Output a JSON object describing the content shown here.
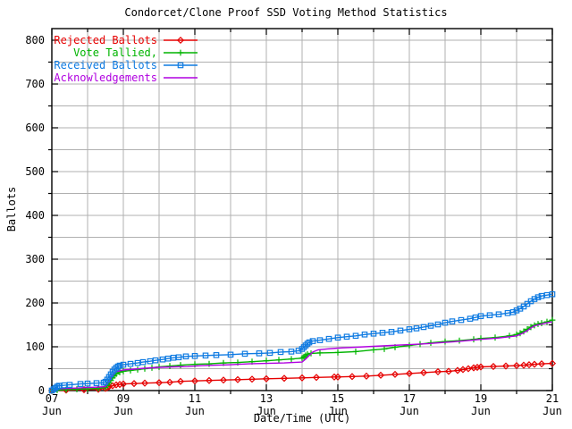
{
  "title": "Condorcet/Clone Proof SSD Voting Method Statistics",
  "chart_data": {
    "type": "line",
    "title": "Condorcet/Clone Proof SSD Voting Method Statistics",
    "xlabel": "Date/Time (UTC)",
    "ylabel": "Ballots",
    "xlim": [
      7,
      21
    ],
    "ylim": [
      0,
      826
    ],
    "grid": true,
    "grid_color": "#b0b0b0",
    "border_color": "#000000",
    "background_color": "#ffffff",
    "legend_position": "top-left",
    "x_tick_days": [
      7,
      9,
      11,
      13,
      15,
      17,
      19,
      21
    ],
    "x_tick_labels": [
      "07",
      "09",
      "11",
      "13",
      "15",
      "17",
      "19",
      "21"
    ],
    "x_tick_sublabel": "Jun",
    "x_minor_step_days": 1,
    "y_tick_step": 100,
    "y_grid_step": 50,
    "y_tick_labels": [
      "0",
      "100",
      "200",
      "300",
      "400",
      "500",
      "600",
      "700",
      "800"
    ],
    "series": [
      {
        "name": "Rejected Ballots",
        "color": "#e60000",
        "marker": "diamond",
        "points": [
          [
            7.0,
            0
          ],
          [
            7.4,
            1
          ],
          [
            7.9,
            2
          ],
          [
            8.3,
            3
          ],
          [
            8.5,
            5
          ],
          [
            8.55,
            7
          ],
          [
            8.6,
            9
          ],
          [
            8.7,
            11
          ],
          [
            8.8,
            13
          ],
          [
            8.9,
            14
          ],
          [
            9.0,
            15
          ],
          [
            9.3,
            16
          ],
          [
            9.6,
            17
          ],
          [
            10.0,
            18
          ],
          [
            10.3,
            19
          ],
          [
            10.6,
            21
          ],
          [
            11.0,
            22
          ],
          [
            11.4,
            23
          ],
          [
            11.8,
            24
          ],
          [
            12.2,
            25
          ],
          [
            12.6,
            26
          ],
          [
            13.0,
            27
          ],
          [
            13.5,
            28
          ],
          [
            14.0,
            29
          ],
          [
            14.4,
            30
          ],
          [
            14.9,
            31
          ],
          [
            15.0,
            31
          ],
          [
            15.4,
            32
          ],
          [
            15.8,
            33
          ],
          [
            16.2,
            35
          ],
          [
            16.6,
            37
          ],
          [
            17.0,
            39
          ],
          [
            17.4,
            41
          ],
          [
            17.8,
            43
          ],
          [
            18.1,
            44
          ],
          [
            18.35,
            46
          ],
          [
            18.5,
            48
          ],
          [
            18.65,
            50
          ],
          [
            18.8,
            52
          ],
          [
            18.9,
            53
          ],
          [
            19.0,
            54
          ],
          [
            19.35,
            55
          ],
          [
            19.7,
            56
          ],
          [
            20.0,
            57
          ],
          [
            20.2,
            58
          ],
          [
            20.35,
            59
          ],
          [
            20.5,
            60
          ],
          [
            20.7,
            61
          ],
          [
            21.0,
            62
          ]
        ]
      },
      {
        "name": "Vote Tallied,",
        "color": "#00b400",
        "marker": "plus",
        "points": [
          [
            7.0,
            0
          ],
          [
            7.15,
            1
          ],
          [
            7.4,
            2
          ],
          [
            7.7,
            3
          ],
          [
            8.0,
            4
          ],
          [
            8.3,
            5
          ],
          [
            8.5,
            7
          ],
          [
            8.55,
            12
          ],
          [
            8.6,
            17
          ],
          [
            8.65,
            23
          ],
          [
            8.7,
            29
          ],
          [
            8.75,
            34
          ],
          [
            8.8,
            38
          ],
          [
            8.9,
            42
          ],
          [
            9.0,
            44
          ],
          [
            9.2,
            46
          ],
          [
            9.4,
            48
          ],
          [
            9.6,
            50
          ],
          [
            9.8,
            52
          ],
          [
            10.0,
            54
          ],
          [
            10.3,
            56
          ],
          [
            10.6,
            58
          ],
          [
            11.0,
            60
          ],
          [
            11.4,
            61
          ],
          [
            11.8,
            63
          ],
          [
            12.2,
            64
          ],
          [
            12.6,
            66
          ],
          [
            13.0,
            68
          ],
          [
            13.35,
            70
          ],
          [
            13.7,
            72
          ],
          [
            14.0,
            74
          ],
          [
            14.05,
            77
          ],
          [
            14.1,
            80
          ],
          [
            14.15,
            83
          ],
          [
            14.25,
            85
          ],
          [
            14.5,
            86
          ],
          [
            15.0,
            87
          ],
          [
            15.5,
            89
          ],
          [
            16.0,
            93
          ],
          [
            16.3,
            95
          ],
          [
            16.6,
            99
          ],
          [
            17.0,
            103
          ],
          [
            17.3,
            106
          ],
          [
            17.6,
            109
          ],
          [
            18.0,
            112
          ],
          [
            18.4,
            114
          ],
          [
            18.8,
            117
          ],
          [
            19.0,
            119
          ],
          [
            19.4,
            121
          ],
          [
            19.8,
            125
          ],
          [
            20.0,
            128
          ],
          [
            20.1,
            131
          ],
          [
            20.2,
            135
          ],
          [
            20.3,
            140
          ],
          [
            20.4,
            145
          ],
          [
            20.5,
            149
          ],
          [
            20.6,
            152
          ],
          [
            20.7,
            154
          ],
          [
            20.85,
            157
          ],
          [
            21.0,
            161
          ]
        ]
      },
      {
        "name": "Received Ballots",
        "color": "#0f7be2",
        "marker": "square",
        "points": [
          [
            7.0,
            0
          ],
          [
            7.05,
            3
          ],
          [
            7.1,
            6
          ],
          [
            7.15,
            9
          ],
          [
            7.2,
            11
          ],
          [
            7.35,
            12
          ],
          [
            7.5,
            13
          ],
          [
            7.8,
            15
          ],
          [
            8.0,
            16
          ],
          [
            8.25,
            17
          ],
          [
            8.45,
            18
          ],
          [
            8.5,
            20
          ],
          [
            8.55,
            25
          ],
          [
            8.6,
            31
          ],
          [
            8.65,
            37
          ],
          [
            8.7,
            43
          ],
          [
            8.75,
            48
          ],
          [
            8.8,
            52
          ],
          [
            8.85,
            55
          ],
          [
            8.9,
            57
          ],
          [
            9.0,
            59
          ],
          [
            9.2,
            61
          ],
          [
            9.4,
            63
          ],
          [
            9.55,
            65
          ],
          [
            9.75,
            67
          ],
          [
            9.9,
            69
          ],
          [
            10.1,
            71
          ],
          [
            10.25,
            73
          ],
          [
            10.4,
            75
          ],
          [
            10.55,
            76
          ],
          [
            10.75,
            78
          ],
          [
            11.0,
            79
          ],
          [
            11.3,
            80
          ],
          [
            11.6,
            81
          ],
          [
            12.0,
            82
          ],
          [
            12.4,
            84
          ],
          [
            12.8,
            85
          ],
          [
            13.1,
            86
          ],
          [
            13.4,
            88
          ],
          [
            13.7,
            89
          ],
          [
            13.9,
            91
          ],
          [
            14.0,
            95
          ],
          [
            14.05,
            99
          ],
          [
            14.1,
            103
          ],
          [
            14.15,
            107
          ],
          [
            14.2,
            110
          ],
          [
            14.3,
            113
          ],
          [
            14.5,
            115
          ],
          [
            14.75,
            118
          ],
          [
            15.0,
            121
          ],
          [
            15.25,
            123
          ],
          [
            15.5,
            125
          ],
          [
            15.75,
            128
          ],
          [
            16.0,
            130
          ],
          [
            16.25,
            132
          ],
          [
            16.5,
            134
          ],
          [
            16.75,
            137
          ],
          [
            17.0,
            140
          ],
          [
            17.2,
            142
          ],
          [
            17.4,
            145
          ],
          [
            17.6,
            148
          ],
          [
            17.8,
            151
          ],
          [
            18.0,
            155
          ],
          [
            18.2,
            158
          ],
          [
            18.45,
            161
          ],
          [
            18.7,
            164
          ],
          [
            18.85,
            167
          ],
          [
            19.0,
            170
          ],
          [
            19.25,
            172
          ],
          [
            19.5,
            174
          ],
          [
            19.75,
            177
          ],
          [
            19.9,
            179
          ],
          [
            20.0,
            183
          ],
          [
            20.1,
            187
          ],
          [
            20.2,
            192
          ],
          [
            20.3,
            198
          ],
          [
            20.4,
            204
          ],
          [
            20.5,
            209
          ],
          [
            20.6,
            213
          ],
          [
            20.7,
            216
          ],
          [
            20.85,
            218
          ],
          [
            21.0,
            220
          ]
        ]
      },
      {
        "name": "Acknowledgements",
        "color": "#b000e0",
        "marker": "none",
        "points": [
          [
            7.0,
            0
          ],
          [
            7.1,
            2
          ],
          [
            7.2,
            4
          ],
          [
            7.45,
            5
          ],
          [
            7.75,
            6
          ],
          [
            8.0,
            7
          ],
          [
            8.3,
            8
          ],
          [
            8.5,
            9
          ],
          [
            8.55,
            15
          ],
          [
            8.6,
            21
          ],
          [
            8.65,
            28
          ],
          [
            8.7,
            34
          ],
          [
            8.75,
            39
          ],
          [
            8.8,
            43
          ],
          [
            8.9,
            45
          ],
          [
            9.0,
            47
          ],
          [
            9.3,
            49
          ],
          [
            9.6,
            51
          ],
          [
            10.0,
            53
          ],
          [
            10.4,
            54
          ],
          [
            10.8,
            55
          ],
          [
            11.2,
            57
          ],
          [
            11.6,
            58
          ],
          [
            12.0,
            59
          ],
          [
            12.5,
            61
          ],
          [
            13.0,
            62
          ],
          [
            13.5,
            63
          ],
          [
            14.0,
            65
          ],
          [
            14.1,
            72
          ],
          [
            14.2,
            80
          ],
          [
            14.3,
            88
          ],
          [
            14.45,
            93
          ],
          [
            14.7,
            95
          ],
          [
            15.0,
            97
          ],
          [
            15.5,
            99
          ],
          [
            16.0,
            101
          ],
          [
            16.5,
            103
          ],
          [
            17.0,
            105
          ],
          [
            17.5,
            107
          ],
          [
            18.0,
            110
          ],
          [
            18.5,
            113
          ],
          [
            19.0,
            117
          ],
          [
            19.5,
            120
          ],
          [
            20.0,
            125
          ],
          [
            20.15,
            130
          ],
          [
            20.3,
            137
          ],
          [
            20.4,
            143
          ],
          [
            20.5,
            148
          ],
          [
            20.65,
            151
          ],
          [
            20.8,
            154
          ],
          [
            21.0,
            157
          ]
        ]
      }
    ]
  }
}
